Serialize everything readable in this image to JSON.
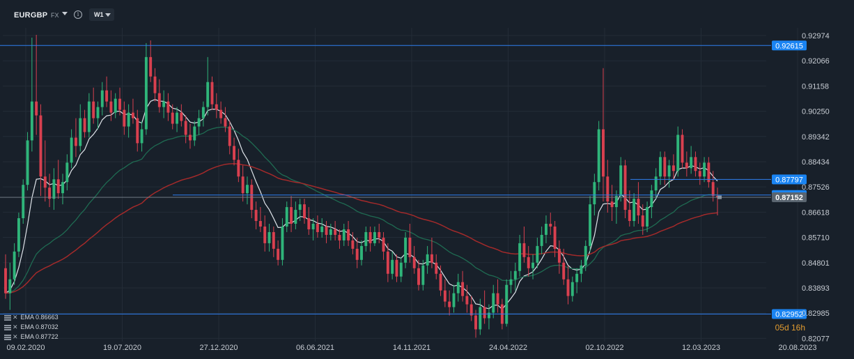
{
  "toolbar": {
    "symbol": "EURGBP",
    "market": "FX",
    "timeframe": "W1",
    "info_icon": "info-icon",
    "dropdown_icon": "chevron-down-icon"
  },
  "colors": {
    "background": "#18202a",
    "bull": "#2fb57a",
    "bear": "#d9404f",
    "ema_fast": "#dfe4ea",
    "ema_mid": "#1f6b52",
    "ema_slow": "#a32a2a",
    "hline": "#2f7ff0",
    "tag_bg": "#1a84f2",
    "current_tag_bg": "#5a6570",
    "countdown": "#e09a2f"
  },
  "legend": [
    {
      "label": "EMA",
      "value": "0.86663"
    },
    {
      "label": "EMA",
      "value": "0.87032"
    },
    {
      "label": "EMA",
      "value": "0.87722"
    }
  ],
  "countdown": "05d 16h",
  "chart_data": {
    "type": "candlestick",
    "y_axis": {
      "ticks": [
        "0.92974",
        "0.92066",
        "0.91158",
        "0.90250",
        "0.89342",
        "0.88434",
        "0.87526",
        "0.86618",
        "0.85710",
        "0.84801",
        "0.83893",
        "0.82985",
        "0.82077"
      ],
      "ylim": [
        0.8196,
        0.9325
      ]
    },
    "x_axis": {
      "ticks": [
        "09.02.2020",
        "19.07.2020",
        "27.12.2020",
        "06.06.2021",
        "14.11.2021",
        "24.04.2022",
        "02.10.2022",
        "12.03.2023",
        "20.08.2023"
      ]
    },
    "hlines": [
      {
        "value": "0.92615",
        "price": 0.92615
      },
      {
        "value": "0.87797",
        "price": 0.87797
      },
      {
        "value": "0.87235",
        "price": 0.87235
      },
      {
        "value": "0.82952",
        "price": 0.82952
      }
    ],
    "current_price": {
      "value": "0.87152",
      "price": 0.87152
    },
    "candles_ohlc": [
      [
        0.846,
        0.851,
        0.835,
        0.837
      ],
      [
        0.837,
        0.848,
        0.831,
        0.842
      ],
      [
        0.842,
        0.855,
        0.84,
        0.852
      ],
      [
        0.852,
        0.866,
        0.85,
        0.864
      ],
      [
        0.864,
        0.878,
        0.862,
        0.876
      ],
      [
        0.876,
        0.895,
        0.874,
        0.892
      ],
      [
        0.892,
        0.929,
        0.888,
        0.906
      ],
      [
        0.906,
        0.93,
        0.894,
        0.901
      ],
      [
        0.901,
        0.905,
        0.872,
        0.879
      ],
      [
        0.879,
        0.892,
        0.87,
        0.875
      ],
      [
        0.875,
        0.88,
        0.868,
        0.871
      ],
      [
        0.871,
        0.882,
        0.867,
        0.878
      ],
      [
        0.878,
        0.885,
        0.871,
        0.873
      ],
      [
        0.873,
        0.88,
        0.869,
        0.877
      ],
      [
        0.877,
        0.887,
        0.874,
        0.884
      ],
      [
        0.884,
        0.896,
        0.882,
        0.893
      ],
      [
        0.893,
        0.9,
        0.886,
        0.89
      ],
      [
        0.89,
        0.905,
        0.888,
        0.9
      ],
      [
        0.9,
        0.903,
        0.893,
        0.895
      ],
      [
        0.895,
        0.909,
        0.893,
        0.906
      ],
      [
        0.906,
        0.911,
        0.898,
        0.9
      ],
      [
        0.9,
        0.906,
        0.896,
        0.904
      ],
      [
        0.904,
        0.913,
        0.901,
        0.91
      ],
      [
        0.91,
        0.915,
        0.904,
        0.906
      ],
      [
        0.906,
        0.91,
        0.899,
        0.902
      ],
      [
        0.902,
        0.909,
        0.9,
        0.907
      ],
      [
        0.907,
        0.911,
        0.901,
        0.903
      ],
      [
        0.903,
        0.906,
        0.894,
        0.897
      ],
      [
        0.897,
        0.905,
        0.893,
        0.902
      ],
      [
        0.902,
        0.907,
        0.898,
        0.9
      ],
      [
        0.9,
        0.903,
        0.888,
        0.891
      ],
      [
        0.891,
        0.899,
        0.888,
        0.896
      ],
      [
        0.896,
        0.927,
        0.894,
        0.922
      ],
      [
        0.922,
        0.928,
        0.913,
        0.915
      ],
      [
        0.915,
        0.918,
        0.906,
        0.909
      ],
      [
        0.909,
        0.914,
        0.902,
        0.904
      ],
      [
        0.904,
        0.91,
        0.9,
        0.906
      ],
      [
        0.906,
        0.909,
        0.899,
        0.902
      ],
      [
        0.902,
        0.905,
        0.896,
        0.898
      ],
      [
        0.898,
        0.904,
        0.895,
        0.902
      ],
      [
        0.902,
        0.905,
        0.897,
        0.899
      ],
      [
        0.899,
        0.901,
        0.891,
        0.894
      ],
      [
        0.894,
        0.898,
        0.889,
        0.892
      ],
      [
        0.892,
        0.899,
        0.89,
        0.897
      ],
      [
        0.897,
        0.903,
        0.894,
        0.9
      ],
      [
        0.9,
        0.906,
        0.897,
        0.904
      ],
      [
        0.904,
        0.922,
        0.901,
        0.913
      ],
      [
        0.913,
        0.915,
        0.903,
        0.905
      ],
      [
        0.905,
        0.909,
        0.9,
        0.903
      ],
      [
        0.903,
        0.906,
        0.898,
        0.9
      ],
      [
        0.9,
        0.904,
        0.895,
        0.897
      ],
      [
        0.897,
        0.899,
        0.887,
        0.89
      ],
      [
        0.89,
        0.893,
        0.883,
        0.885
      ],
      [
        0.885,
        0.889,
        0.877,
        0.879
      ],
      [
        0.879,
        0.883,
        0.87,
        0.873
      ],
      [
        0.873,
        0.879,
        0.869,
        0.876
      ],
      [
        0.876,
        0.878,
        0.864,
        0.867
      ],
      [
        0.867,
        0.87,
        0.86,
        0.863
      ],
      [
        0.863,
        0.868,
        0.859,
        0.861
      ],
      [
        0.861,
        0.865,
        0.852,
        0.855
      ],
      [
        0.855,
        0.862,
        0.852,
        0.859
      ],
      [
        0.859,
        0.861,
        0.85,
        0.853
      ],
      [
        0.853,
        0.856,
        0.847,
        0.849
      ],
      [
        0.849,
        0.864,
        0.847,
        0.861
      ],
      [
        0.861,
        0.87,
        0.859,
        0.868
      ],
      [
        0.868,
        0.872,
        0.859,
        0.862
      ],
      [
        0.862,
        0.87,
        0.86,
        0.867
      ],
      [
        0.867,
        0.871,
        0.863,
        0.869
      ],
      [
        0.869,
        0.871,
        0.862,
        0.864
      ],
      [
        0.864,
        0.868,
        0.858,
        0.86
      ],
      [
        0.86,
        0.864,
        0.856,
        0.862
      ],
      [
        0.862,
        0.865,
        0.857,
        0.859
      ],
      [
        0.859,
        0.864,
        0.857,
        0.861
      ],
      [
        0.861,
        0.863,
        0.855,
        0.858
      ],
      [
        0.858,
        0.862,
        0.856,
        0.86
      ],
      [
        0.86,
        0.863,
        0.856,
        0.858
      ],
      [
        0.858,
        0.86,
        0.853,
        0.856
      ],
      [
        0.856,
        0.862,
        0.854,
        0.86
      ],
      [
        0.86,
        0.863,
        0.854,
        0.856
      ],
      [
        0.856,
        0.859,
        0.851,
        0.853
      ],
      [
        0.853,
        0.857,
        0.846,
        0.849
      ],
      [
        0.849,
        0.856,
        0.847,
        0.854
      ],
      [
        0.854,
        0.861,
        0.852,
        0.859
      ],
      [
        0.859,
        0.861,
        0.852,
        0.855
      ],
      [
        0.855,
        0.861,
        0.854,
        0.859
      ],
      [
        0.859,
        0.862,
        0.855,
        0.857
      ],
      [
        0.857,
        0.859,
        0.849,
        0.852
      ],
      [
        0.852,
        0.855,
        0.841,
        0.844
      ],
      [
        0.844,
        0.852,
        0.842,
        0.849
      ],
      [
        0.849,
        0.851,
        0.841,
        0.843
      ],
      [
        0.843,
        0.85,
        0.841,
        0.848
      ],
      [
        0.848,
        0.859,
        0.846,
        0.857
      ],
      [
        0.857,
        0.862,
        0.848,
        0.85
      ],
      [
        0.85,
        0.854,
        0.844,
        0.846
      ],
      [
        0.846,
        0.849,
        0.838,
        0.84
      ],
      [
        0.84,
        0.849,
        0.838,
        0.847
      ],
      [
        0.847,
        0.854,
        0.844,
        0.851
      ],
      [
        0.851,
        0.857,
        0.846,
        0.848
      ],
      [
        0.848,
        0.851,
        0.842,
        0.844
      ],
      [
        0.844,
        0.847,
        0.836,
        0.838
      ],
      [
        0.838,
        0.842,
        0.832,
        0.834
      ],
      [
        0.834,
        0.838,
        0.829,
        0.832
      ],
      [
        0.832,
        0.84,
        0.83,
        0.837
      ],
      [
        0.837,
        0.844,
        0.834,
        0.841
      ],
      [
        0.841,
        0.845,
        0.834,
        0.836
      ],
      [
        0.836,
        0.84,
        0.83,
        0.833
      ],
      [
        0.833,
        0.836,
        0.827,
        0.829
      ],
      [
        0.829,
        0.831,
        0.821,
        0.824
      ],
      [
        0.824,
        0.835,
        0.822,
        0.832
      ],
      [
        0.832,
        0.838,
        0.826,
        0.828
      ],
      [
        0.828,
        0.833,
        0.824,
        0.83
      ],
      [
        0.83,
        0.84,
        0.828,
        0.837
      ],
      [
        0.837,
        0.842,
        0.83,
        0.833
      ],
      [
        0.833,
        0.835,
        0.824,
        0.826
      ],
      [
        0.826,
        0.842,
        0.825,
        0.84
      ],
      [
        0.84,
        0.845,
        0.837,
        0.842
      ],
      [
        0.842,
        0.848,
        0.838,
        0.845
      ],
      [
        0.845,
        0.858,
        0.843,
        0.855
      ],
      [
        0.855,
        0.861,
        0.848,
        0.85
      ],
      [
        0.85,
        0.854,
        0.843,
        0.846
      ],
      [
        0.846,
        0.851,
        0.842,
        0.848
      ],
      [
        0.848,
        0.857,
        0.846,
        0.854
      ],
      [
        0.854,
        0.861,
        0.851,
        0.858
      ],
      [
        0.858,
        0.865,
        0.855,
        0.862
      ],
      [
        0.862,
        0.866,
        0.858,
        0.861
      ],
      [
        0.861,
        0.863,
        0.85,
        0.853
      ],
      [
        0.853,
        0.856,
        0.844,
        0.848
      ],
      [
        0.848,
        0.853,
        0.84,
        0.842
      ],
      [
        0.842,
        0.847,
        0.833,
        0.836
      ],
      [
        0.836,
        0.843,
        0.834,
        0.841
      ],
      [
        0.841,
        0.846,
        0.837,
        0.844
      ],
      [
        0.844,
        0.849,
        0.841,
        0.847
      ],
      [
        0.847,
        0.856,
        0.845,
        0.854
      ],
      [
        0.854,
        0.872,
        0.852,
        0.869
      ],
      [
        0.869,
        0.88,
        0.865,
        0.877
      ],
      [
        0.877,
        0.899,
        0.874,
        0.896
      ],
      [
        0.896,
        0.918,
        0.87,
        0.879
      ],
      [
        0.879,
        0.885,
        0.866,
        0.87
      ],
      [
        0.87,
        0.876,
        0.863,
        0.868
      ],
      [
        0.868,
        0.874,
        0.862,
        0.872
      ],
      [
        0.872,
        0.886,
        0.87,
        0.883
      ],
      [
        0.883,
        0.885,
        0.864,
        0.867
      ],
      [
        0.867,
        0.874,
        0.861,
        0.863
      ],
      [
        0.863,
        0.873,
        0.861,
        0.871
      ],
      [
        0.871,
        0.877,
        0.862,
        0.865
      ],
      [
        0.865,
        0.869,
        0.858,
        0.861
      ],
      [
        0.861,
        0.87,
        0.859,
        0.868
      ],
      [
        0.868,
        0.876,
        0.864,
        0.874
      ],
      [
        0.874,
        0.882,
        0.871,
        0.879
      ],
      [
        0.879,
        0.888,
        0.876,
        0.886
      ],
      [
        0.886,
        0.888,
        0.876,
        0.879
      ],
      [
        0.879,
        0.885,
        0.875,
        0.883
      ],
      [
        0.883,
        0.887,
        0.878,
        0.881
      ],
      [
        0.881,
        0.897,
        0.879,
        0.894
      ],
      [
        0.894,
        0.896,
        0.882,
        0.884
      ],
      [
        0.884,
        0.888,
        0.879,
        0.882
      ],
      [
        0.882,
        0.89,
        0.88,
        0.886
      ],
      [
        0.886,
        0.888,
        0.879,
        0.881
      ],
      [
        0.881,
        0.884,
        0.876,
        0.879
      ],
      [
        0.879,
        0.886,
        0.877,
        0.884
      ],
      [
        0.884,
        0.886,
        0.875,
        0.877
      ],
      [
        0.877,
        0.881,
        0.87,
        0.872
      ],
      [
        0.872,
        0.875,
        0.865,
        0.8715
      ]
    ],
    "ema_values": {
      "fast": "0.86663",
      "mid": "0.87032",
      "slow": "0.87722"
    }
  }
}
